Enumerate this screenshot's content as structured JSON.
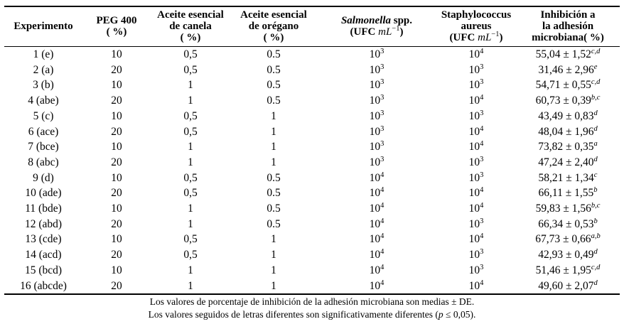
{
  "table": {
    "headers": {
      "experimento": "Experimento",
      "peg400": [
        "PEG 400",
        "( %)"
      ],
      "canela": [
        "Aceite esencial",
        "de canela",
        "( %)"
      ],
      "oregano": [
        "Aceite esencial",
        "de orégano",
        "( %)"
      ],
      "salmonella": {
        "genus": "Salmonella",
        "rest": " spp."
      },
      "ufc": {
        "prefix": "(UFC ",
        "unit": "mL",
        "sup": "−1",
        "suffix": ")"
      },
      "staphylococcus": [
        "Staphylococcus",
        "aureus"
      ],
      "inhibicion": [
        "Inhibición a",
        "la adhesión",
        "microbiana( %)"
      ]
    },
    "rows": [
      {
        "experimento": "1 (e)",
        "peg400": "10",
        "canela": "0,5",
        "oregano": "0.5",
        "salmonella_exp": "3",
        "staph_exp": "4",
        "inhibicion": "55,04 ± 1,52",
        "sig": "c,d"
      },
      {
        "experimento": "2 (a)",
        "peg400": "20",
        "canela": "0,5",
        "oregano": "0.5",
        "salmonella_exp": "3",
        "staph_exp": "3",
        "inhibicion": "31,46 ± 2,96",
        "sig": "e"
      },
      {
        "experimento": "3 (b)",
        "peg400": "10",
        "canela": "1",
        "oregano": "0.5",
        "salmonella_exp": "3",
        "staph_exp": "3",
        "inhibicion": "54,71 ± 0,55",
        "sig": "c,d"
      },
      {
        "experimento": "4 (abe)",
        "peg400": "20",
        "canela": "1",
        "oregano": "0.5",
        "salmonella_exp": "3",
        "staph_exp": "4",
        "inhibicion": "60,73 ± 0,39",
        "sig": "b,c"
      },
      {
        "experimento": "5 (c)",
        "peg400": "10",
        "canela": "0,5",
        "oregano": "1",
        "salmonella_exp": "3",
        "staph_exp": "3",
        "inhibicion": "43,49 ± 0,83",
        "sig": "d"
      },
      {
        "experimento": "6 (ace)",
        "peg400": "20",
        "canela": "0,5",
        "oregano": "1",
        "salmonella_exp": "3",
        "staph_exp": "4",
        "inhibicion": "48,04 ± 1,96",
        "sig": "d"
      },
      {
        "experimento": "7 (bce)",
        "peg400": "10",
        "canela": "1",
        "oregano": "1",
        "salmonella_exp": "3",
        "staph_exp": "4",
        "inhibicion": "73,82 ± 0,35",
        "sig": "a"
      },
      {
        "experimento": "8 (abc)",
        "peg400": "20",
        "canela": "1",
        "oregano": "1",
        "salmonella_exp": "3",
        "staph_exp": "3",
        "inhibicion": "47,24 ± 2,40",
        "sig": "d"
      },
      {
        "experimento": "9 (d)",
        "peg400": "10",
        "canela": "0,5",
        "oregano": "0.5",
        "salmonella_exp": "4",
        "staph_exp": "3",
        "inhibicion": "58,21 ± 1,34",
        "sig": "c"
      },
      {
        "experimento": "10 (ade)",
        "peg400": "20",
        "canela": "0,5",
        "oregano": "0.5",
        "salmonella_exp": "4",
        "staph_exp": "4",
        "inhibicion": "66,11 ± 1,55",
        "sig": "b"
      },
      {
        "experimento": "11 (bde)",
        "peg400": "10",
        "canela": "1",
        "oregano": "0.5",
        "salmonella_exp": "4",
        "staph_exp": "4",
        "inhibicion": "59,83 ± 1,56",
        "sig": "b,c"
      },
      {
        "experimento": "12 (abd)",
        "peg400": "20",
        "canela": "1",
        "oregano": "0.5",
        "salmonella_exp": "4",
        "staph_exp": "3",
        "inhibicion": "66,34 ± 0,53",
        "sig": "b"
      },
      {
        "experimento": "13 (cde)",
        "peg400": "10",
        "canela": "0,5",
        "oregano": "1",
        "salmonella_exp": "4",
        "staph_exp": "4",
        "inhibicion": "67,73 ± 0,66",
        "sig": "a,b"
      },
      {
        "experimento": "14 (acd)",
        "peg400": "20",
        "canela": "0,5",
        "oregano": "1",
        "salmonella_exp": "4",
        "staph_exp": "3",
        "inhibicion": "42,93 ± 0,49",
        "sig": "d"
      },
      {
        "experimento": "15 (bcd)",
        "peg400": "10",
        "canela": "1",
        "oregano": "1",
        "salmonella_exp": "4",
        "staph_exp": "3",
        "inhibicion": "51,46 ± 1,95",
        "sig": "c,d"
      },
      {
        "experimento": "16 (abcde)",
        "peg400": "20",
        "canela": "1",
        "oregano": "1",
        "salmonella_exp": "4",
        "staph_exp": "4",
        "inhibicion": "49,60 ± 2,07",
        "sig": "d"
      }
    ],
    "notes": {
      "line1": "Los valores de porcentaje de inhibición de la adhesión microbiana son medias ± DE.",
      "line2_prefix": "Los valores seguidos de letras diferentes son significativamente diferentes (",
      "line2_italic": "p",
      "line2_suffix": " ≤ 0,05)."
    }
  }
}
